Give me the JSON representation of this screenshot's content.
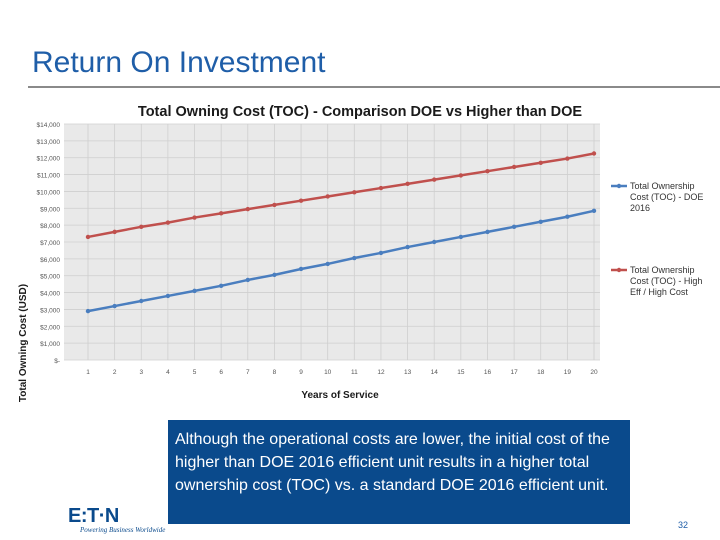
{
  "slide": {
    "title": "Return On Investment",
    "callout": "Although the operational costs are lower, the initial cost of the higher than DOE 2016 efficient unit results in a higher total ownership cost (TOC) vs. a standard DOE 2016 efficient unit.",
    "page_number": "32",
    "logo": {
      "text": "E:T·N",
      "tagline": "Powering Business Worldwide"
    }
  },
  "chart_data": {
    "type": "line",
    "title": "Total Owning Cost (TOC) - Comparison DOE vs Higher than DOE",
    "xlabel": "Years of Service",
    "ylabel": "Total Owning Cost (USD)",
    "x": [
      1,
      2,
      3,
      4,
      5,
      6,
      7,
      8,
      9,
      10,
      11,
      12,
      13,
      14,
      15,
      16,
      17,
      18,
      19,
      20
    ],
    "y_ticks": [
      "$-",
      "$1,000",
      "$2,000",
      "$3,000",
      "$4,000",
      "$5,000",
      "$6,000",
      "$7,000",
      "$8,000",
      "$9,000",
      "$10,000",
      "$11,000",
      "$12,000",
      "$13,000",
      "$14,000"
    ],
    "ylim": [
      0,
      14000
    ],
    "grid": true,
    "legend_position": "right",
    "series": [
      {
        "name": "Total Ownership Cost (TOC) - DOE 2016",
        "color": "#4a7ebf",
        "values": [
          2900,
          3200,
          3500,
          3800,
          4100,
          4400,
          4750,
          5050,
          5400,
          5700,
          6050,
          6350,
          6700,
          7000,
          7300,
          7600,
          7900,
          8200,
          8500,
          8850
        ]
      },
      {
        "name": "Total Ownership Cost (TOC) - High Eff / High Cost",
        "color": "#c0504d",
        "values": [
          7300,
          7600,
          7900,
          8150,
          8450,
          8700,
          8950,
          9200,
          9450,
          9700,
          9950,
          10200,
          10450,
          10700,
          10950,
          11200,
          11450,
          11700,
          11950,
          12250
        ]
      }
    ]
  }
}
